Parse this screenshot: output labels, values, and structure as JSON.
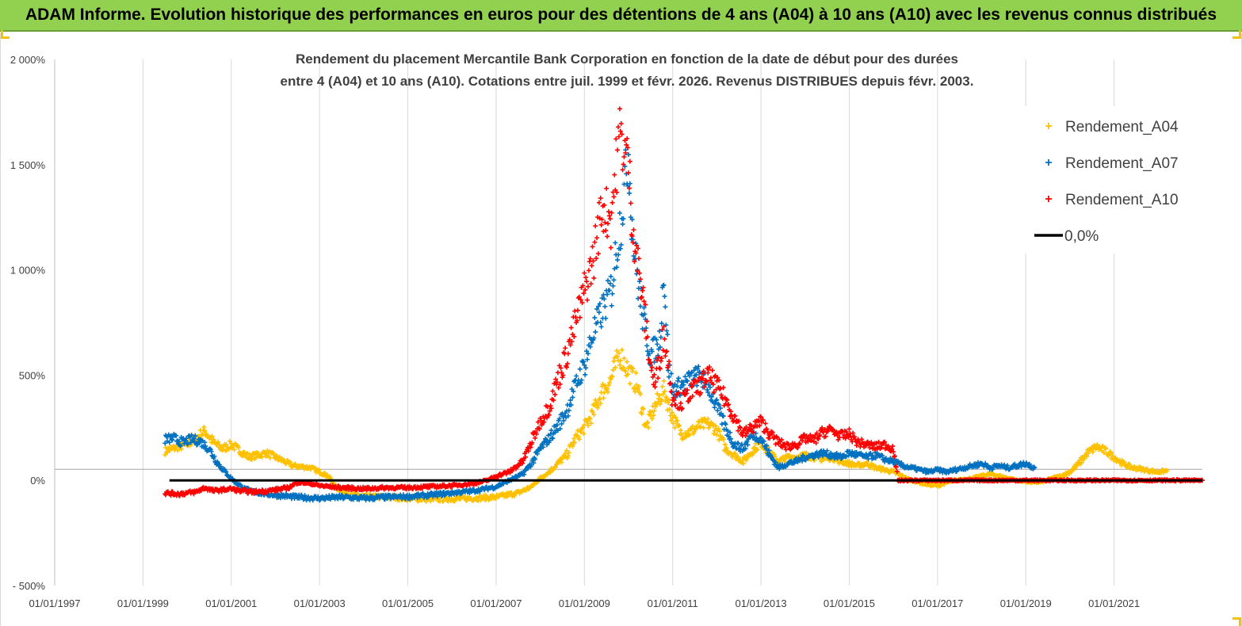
{
  "banner": {
    "title": "ADAM Informe. Evolution historique des performances en euros pour des détentions de 4 ans (A04) à 10 ans (A10) avec les revenus connus distribués"
  },
  "colors": {
    "banner_bg": "#92d050",
    "A04": "#ffc000",
    "A07": "#0070c0",
    "A10": "#ff0000",
    "zero_line": "#000000"
  },
  "chart_data": {
    "type": "scatter",
    "title_line1": "Rendement du placement Mercantile Bank Corporation en fonction de la date de début pour des durées",
    "title_line2": "entre 4 (A04) et 10 ans (A10).  Cotations entre juil. 1999 et févr. 2026.  Revenus DISTRIBUES depuis févr. 2003.",
    "x_axis": {
      "ticks": [
        "01/01/1997",
        "01/01/1999",
        "01/01/2001",
        "01/01/2003",
        "01/01/2005",
        "01/01/2007",
        "01/01/2009",
        "01/01/2011",
        "01/01/2013",
        "01/01/2015",
        "01/01/2017",
        "01/01/2019",
        "01/01/2021"
      ],
      "tick_years": [
        1997,
        1999,
        2001,
        2003,
        2005,
        2007,
        2009,
        2011,
        2013,
        2015,
        2017,
        2019,
        2021
      ],
      "range": [
        1997.0,
        2023.0
      ]
    },
    "y_axis": {
      "ticks": [
        "- 500%",
        "0%",
        "500%",
        "1 000%",
        "1 500%",
        "2 000%"
      ],
      "tick_values": [
        -500,
        0,
        500,
        1000,
        1500,
        2000
      ],
      "range": [
        -500,
        2000
      ],
      "unit": "%"
    },
    "grid": "vertical",
    "legend_position": "top-right",
    "series": [
      {
        "name": "Rendement_A04",
        "marker": "+",
        "points": [
          [
            1999.5,
            140
          ],
          [
            1999.8,
            160
          ],
          [
            2000.0,
            170
          ],
          [
            2000.2,
            200
          ],
          [
            2000.4,
            235
          ],
          [
            2000.6,
            180
          ],
          [
            2000.8,
            150
          ],
          [
            2001.0,
            170
          ],
          [
            2001.2,
            140
          ],
          [
            2001.4,
            110
          ],
          [
            2001.6,
            120
          ],
          [
            2001.8,
            130
          ],
          [
            2002.0,
            110
          ],
          [
            2002.2,
            90
          ],
          [
            2002.4,
            70
          ],
          [
            2002.6,
            65
          ],
          [
            2002.8,
            60
          ],
          [
            2003.0,
            40
          ],
          [
            2003.2,
            20
          ],
          [
            2003.4,
            -40
          ],
          [
            2003.6,
            -60
          ],
          [
            2003.8,
            -70
          ],
          [
            2004.0,
            -75
          ],
          [
            2004.5,
            -80
          ],
          [
            2005.0,
            -85
          ],
          [
            2005.5,
            -90
          ],
          [
            2006.0,
            -88
          ],
          [
            2006.5,
            -85
          ],
          [
            2007.0,
            -80
          ],
          [
            2007.5,
            -60
          ],
          [
            2007.8,
            -30
          ],
          [
            2008.0,
            10
          ],
          [
            2008.2,
            40
          ],
          [
            2008.4,
            80
          ],
          [
            2008.6,
            120
          ],
          [
            2008.8,
            200
          ],
          [
            2009.0,
            250
          ],
          [
            2009.2,
            320
          ],
          [
            2009.4,
            420
          ],
          [
            2009.6,
            480
          ],
          [
            2009.8,
            600
          ],
          [
            2010.0,
            520
          ],
          [
            2010.2,
            450
          ],
          [
            2010.4,
            250
          ],
          [
            2010.6,
            350
          ],
          [
            2010.8,
            430
          ],
          [
            2011.0,
            300
          ],
          [
            2011.2,
            220
          ],
          [
            2011.4,
            230
          ],
          [
            2011.6,
            260
          ],
          [
            2011.8,
            270
          ],
          [
            2012.0,
            240
          ],
          [
            2012.2,
            150
          ],
          [
            2012.4,
            120
          ],
          [
            2012.6,
            90
          ],
          [
            2012.8,
            140
          ],
          [
            2013.0,
            180
          ],
          [
            2013.2,
            130
          ],
          [
            2013.4,
            90
          ],
          [
            2013.6,
            110
          ],
          [
            2013.8,
            110
          ],
          [
            2014.0,
            120
          ],
          [
            2014.2,
            110
          ],
          [
            2014.4,
            100
          ],
          [
            2014.6,
            110
          ],
          [
            2014.8,
            90
          ],
          [
            2015.0,
            80
          ],
          [
            2015.2,
            70
          ],
          [
            2015.4,
            80
          ],
          [
            2015.6,
            60
          ],
          [
            2015.8,
            50
          ],
          [
            2016.0,
            40
          ],
          [
            2016.2,
            20
          ],
          [
            2016.4,
            0
          ],
          [
            2016.6,
            -10
          ],
          [
            2016.8,
            -20
          ],
          [
            2017.0,
            -25
          ],
          [
            2017.2,
            -10
          ],
          [
            2017.4,
            0
          ],
          [
            2017.6,
            5
          ],
          [
            2017.8,
            10
          ],
          [
            2018.0,
            20
          ],
          [
            2018.2,
            30
          ],
          [
            2018.4,
            20
          ],
          [
            2018.6,
            10
          ],
          [
            2018.8,
            0
          ],
          [
            2019.0,
            -5
          ],
          [
            2019.2,
            -10
          ],
          [
            2019.4,
            -5
          ],
          [
            2019.6,
            10
          ],
          [
            2019.8,
            20
          ],
          [
            2020.0,
            40
          ],
          [
            2020.2,
            80
          ],
          [
            2020.4,
            130
          ],
          [
            2020.6,
            160
          ],
          [
            2020.8,
            140
          ],
          [
            2021.0,
            110
          ],
          [
            2021.2,
            80
          ],
          [
            2021.4,
            60
          ],
          [
            2021.6,
            55
          ],
          [
            2021.8,
            45
          ],
          [
            2022.0,
            40
          ],
          [
            2022.2,
            45
          ]
        ]
      },
      {
        "name": "Rendement_A07",
        "marker": "+",
        "points": [
          [
            1999.5,
            195
          ],
          [
            1999.7,
            200
          ],
          [
            1999.9,
            180
          ],
          [
            2000.1,
            195
          ],
          [
            2000.3,
            185
          ],
          [
            2000.5,
            150
          ],
          [
            2000.7,
            80
          ],
          [
            2000.9,
            30
          ],
          [
            2001.1,
            -10
          ],
          [
            2001.3,
            -40
          ],
          [
            2001.5,
            -55
          ],
          [
            2001.8,
            -65
          ],
          [
            2002.0,
            -70
          ],
          [
            2002.5,
            -80
          ],
          [
            2003.0,
            -85
          ],
          [
            2003.5,
            -80
          ],
          [
            2004.0,
            -85
          ],
          [
            2004.5,
            -80
          ],
          [
            2005.0,
            -78
          ],
          [
            2005.5,
            -70
          ],
          [
            2006.0,
            -60
          ],
          [
            2006.5,
            -50
          ],
          [
            2007.0,
            -30
          ],
          [
            2007.3,
            0
          ],
          [
            2007.6,
            30
          ],
          [
            2007.8,
            80
          ],
          [
            2008.0,
            150
          ],
          [
            2008.2,
            200
          ],
          [
            2008.4,
            260
          ],
          [
            2008.6,
            330
          ],
          [
            2008.8,
            450
          ],
          [
            2009.0,
            550
          ],
          [
            2009.2,
            700
          ],
          [
            2009.4,
            800
          ],
          [
            2009.6,
            900
          ],
          [
            2009.8,
            1200
          ],
          [
            2010.0,
            1550
          ],
          [
            2010.1,
            1150
          ],
          [
            2010.3,
            800
          ],
          [
            2010.5,
            600
          ],
          [
            2010.7,
            650
          ],
          [
            2010.8,
            1000
          ],
          [
            2010.9,
            550
          ],
          [
            2011.0,
            430
          ],
          [
            2011.2,
            450
          ],
          [
            2011.4,
            480
          ],
          [
            2011.6,
            500
          ],
          [
            2011.8,
            450
          ],
          [
            2012.0,
            350
          ],
          [
            2012.2,
            250
          ],
          [
            2012.4,
            170
          ],
          [
            2012.6,
            150
          ],
          [
            2012.8,
            220
          ],
          [
            2013.0,
            200
          ],
          [
            2013.2,
            120
          ],
          [
            2013.4,
            60
          ],
          [
            2013.6,
            80
          ],
          [
            2013.8,
            90
          ],
          [
            2014.0,
            110
          ],
          [
            2014.2,
            120
          ],
          [
            2014.4,
            130
          ],
          [
            2014.6,
            120
          ],
          [
            2014.8,
            110
          ],
          [
            2015.0,
            130
          ],
          [
            2015.2,
            120
          ],
          [
            2015.4,
            110
          ],
          [
            2015.6,
            120
          ],
          [
            2015.8,
            100
          ],
          [
            2016.0,
            90
          ],
          [
            2016.2,
            70
          ],
          [
            2016.4,
            60
          ],
          [
            2016.6,
            50
          ],
          [
            2016.8,
            40
          ],
          [
            2017.0,
            50
          ],
          [
            2017.2,
            40
          ],
          [
            2017.4,
            50
          ],
          [
            2017.6,
            60
          ],
          [
            2017.8,
            70
          ],
          [
            2018.0,
            80
          ],
          [
            2018.2,
            60
          ],
          [
            2018.4,
            70
          ],
          [
            2018.6,
            60
          ],
          [
            2018.8,
            70
          ],
          [
            2019.0,
            80
          ],
          [
            2019.2,
            60
          ]
        ]
      },
      {
        "name": "Rendement_A10",
        "marker": "+",
        "points": [
          [
            1999.5,
            -60
          ],
          [
            1999.8,
            -65
          ],
          [
            2000.0,
            -60
          ],
          [
            2000.2,
            -55
          ],
          [
            2000.4,
            -35
          ],
          [
            2000.6,
            -50
          ],
          [
            2000.8,
            -45
          ],
          [
            2001.0,
            -40
          ],
          [
            2001.2,
            -50
          ],
          [
            2001.5,
            -55
          ],
          [
            2001.8,
            -50
          ],
          [
            2002.0,
            -45
          ],
          [
            2002.3,
            -35
          ],
          [
            2002.5,
            -10
          ],
          [
            2002.8,
            -15
          ],
          [
            2003.0,
            -25
          ],
          [
            2003.5,
            -35
          ],
          [
            2004.0,
            -40
          ],
          [
            2004.5,
            -35
          ],
          [
            2005.0,
            -35
          ],
          [
            2005.5,
            -30
          ],
          [
            2006.0,
            -25
          ],
          [
            2006.5,
            -15
          ],
          [
            2006.8,
            0
          ],
          [
            2007.0,
            20
          ],
          [
            2007.3,
            40
          ],
          [
            2007.6,
            90
          ],
          [
            2007.8,
            180
          ],
          [
            2008.0,
            280
          ],
          [
            2008.2,
            350
          ],
          [
            2008.4,
            480
          ],
          [
            2008.6,
            600
          ],
          [
            2008.8,
            750
          ],
          [
            2009.0,
            900
          ],
          [
            2009.2,
            1050
          ],
          [
            2009.4,
            1300
          ],
          [
            2009.6,
            1250
          ],
          [
            2009.8,
            1650
          ],
          [
            2010.0,
            1500
          ],
          [
            2010.1,
            1200
          ],
          [
            2010.3,
            900
          ],
          [
            2010.5,
            550
          ],
          [
            2010.6,
            450
          ],
          [
            2010.8,
            700
          ],
          [
            2011.0,
            400
          ],
          [
            2011.2,
            370
          ],
          [
            2011.4,
            420
          ],
          [
            2011.6,
            450
          ],
          [
            2011.8,
            500
          ],
          [
            2012.0,
            450
          ],
          [
            2012.2,
            380
          ],
          [
            2012.4,
            300
          ],
          [
            2012.6,
            220
          ],
          [
            2012.8,
            250
          ],
          [
            2013.0,
            280
          ],
          [
            2013.2,
            220
          ],
          [
            2013.4,
            180
          ],
          [
            2013.6,
            160
          ],
          [
            2013.8,
            170
          ],
          [
            2014.0,
            200
          ],
          [
            2014.2,
            190
          ],
          [
            2014.4,
            230
          ],
          [
            2014.6,
            240
          ],
          [
            2014.8,
            210
          ],
          [
            2015.0,
            220
          ],
          [
            2015.2,
            180
          ],
          [
            2015.4,
            170
          ],
          [
            2015.6,
            160
          ],
          [
            2015.8,
            170
          ],
          [
            2016.0,
            150
          ],
          [
            2016.1,
            0
          ],
          [
            2016.5,
            0
          ],
          [
            2017.0,
            0
          ],
          [
            2017.5,
            0
          ],
          [
            2018.0,
            0
          ],
          [
            2018.5,
            0
          ],
          [
            2019.0,
            0
          ],
          [
            2019.5,
            0
          ],
          [
            2020.0,
            0
          ],
          [
            2020.5,
            0
          ],
          [
            2021.0,
            0
          ],
          [
            2021.5,
            0
          ],
          [
            2022.0,
            0
          ],
          [
            2022.5,
            0
          ],
          [
            2023.0,
            0
          ]
        ]
      }
    ],
    "reference_line": {
      "name": "0,0%",
      "y": 0,
      "x_range": [
        1999.6,
        2023.0
      ]
    },
    "legend": [
      "Rendement_A04",
      "Rendement_A07",
      "Rendement_A10",
      "0,0%"
    ]
  }
}
